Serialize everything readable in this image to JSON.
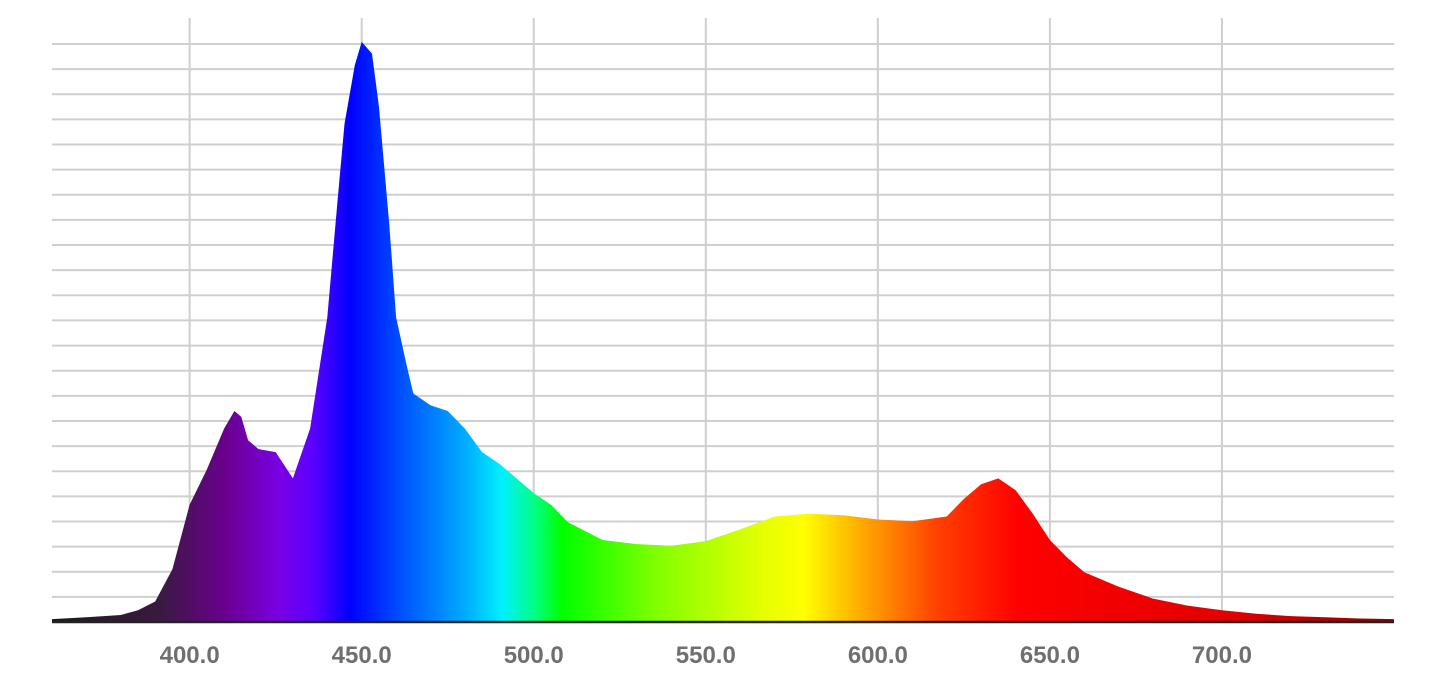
{
  "chart_data": {
    "type": "area",
    "title": "",
    "xlabel": "",
    "ylabel": "",
    "xlim": [
      360,
      750
    ],
    "ylim": [
      0,
      1.0
    ],
    "grid": true,
    "x_ticks": [
      400,
      450,
      500,
      550,
      600,
      650,
      700
    ],
    "x_tick_labels": [
      "400.0",
      "450.0",
      "500.0",
      "550.0",
      "600.0",
      "650.0",
      "700.0"
    ],
    "y_gridline_count": 23,
    "fill": "visible-spectrum rainbow gradient",
    "series": [
      {
        "x": [
          360,
          370,
          380,
          385,
          390,
          395,
          400,
          405,
          410,
          413,
          415,
          417,
          420,
          425,
          430,
          435,
          440,
          443,
          445,
          448,
          450,
          453,
          455,
          458,
          460,
          463,
          465,
          470,
          475,
          480,
          485,
          490,
          495,
          500,
          505,
          510,
          520,
          530,
          540,
          550,
          560,
          570,
          580,
          590,
          600,
          610,
          620,
          625,
          630,
          635,
          640,
          645,
          650,
          655,
          660,
          670,
          680,
          690,
          700,
          710,
          720,
          730,
          740,
          750
        ],
        "values": [
          0.005,
          0.008,
          0.012,
          0.02,
          0.035,
          0.09,
          0.2,
          0.26,
          0.33,
          0.36,
          0.35,
          0.31,
          0.295,
          0.29,
          0.245,
          0.33,
          0.52,
          0.72,
          0.85,
          0.95,
          0.99,
          0.97,
          0.88,
          0.68,
          0.52,
          0.44,
          0.39,
          0.37,
          0.36,
          0.33,
          0.29,
          0.27,
          0.245,
          0.22,
          0.2,
          0.17,
          0.14,
          0.133,
          0.13,
          0.138,
          0.158,
          0.18,
          0.185,
          0.182,
          0.175,
          0.172,
          0.18,
          0.21,
          0.235,
          0.245,
          0.225,
          0.185,
          0.14,
          0.11,
          0.085,
          0.06,
          0.04,
          0.028,
          0.02,
          0.014,
          0.01,
          0.008,
          0.006,
          0.005
        ]
      }
    ],
    "colors": {
      "grid": "#cfcfcf",
      "tick_text": "#6f6f6f",
      "baseline": "#222222",
      "background": "#ffffff"
    }
  }
}
